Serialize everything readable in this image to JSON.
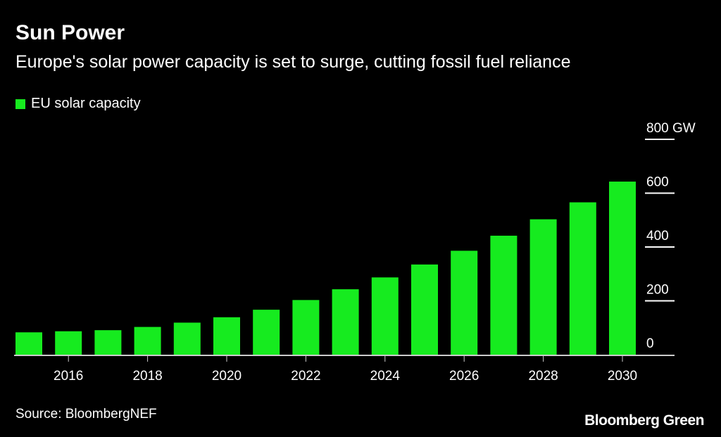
{
  "title": "Sun Power",
  "subtitle": "Europe's solar power capacity is set to surge, cutting fossil fuel reliance",
  "source": "Source: BloombergNEF",
  "logo": "Bloomberg Green",
  "colors": {
    "bar": "#16eb1f",
    "background": "#000000",
    "axis": "#ffffff"
  },
  "chart_data": {
    "type": "bar",
    "legend": [
      "EU solar capacity"
    ],
    "legend_placement": "top-left",
    "categories": [
      2015,
      2016,
      2017,
      2018,
      2019,
      2020,
      2021,
      2022,
      2023,
      2024,
      2025,
      2026,
      2027,
      2028,
      2029,
      2030
    ],
    "series": [
      {
        "name": "EU solar capacity",
        "values": [
          83,
          87,
          91,
          103,
          119,
          139,
          167,
          203,
          243,
          287,
          335,
          386,
          442,
          503,
          566,
          643
        ]
      }
    ],
    "x_tick_labels": [
      "2016",
      "2018",
      "2020",
      "2022",
      "2024",
      "2026",
      "2028",
      "2030"
    ],
    "y_tick_labels": [
      "0",
      "200",
      "400",
      "600",
      "800 GW"
    ],
    "ylim": [
      0,
      800
    ],
    "y_axis_position": "right",
    "grid": false
  }
}
